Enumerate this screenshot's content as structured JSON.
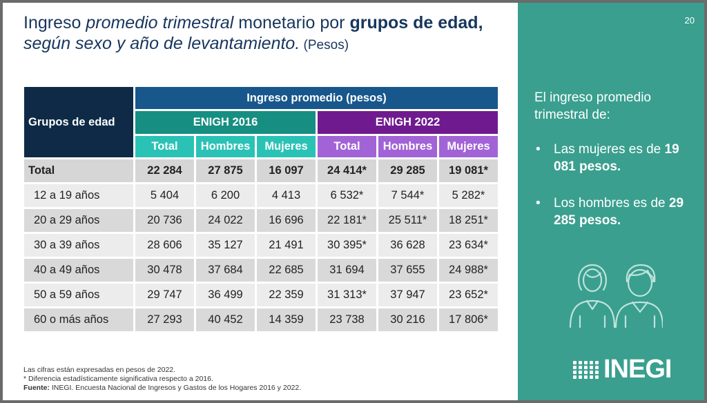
{
  "title": {
    "part1": "Ingreso ",
    "part2": "promedio trimestral",
    "part3": " monetario por ",
    "part4": "grupos de edad,",
    "part5": "según sexo y año de levantamiento.",
    "part6": " (Pesos)"
  },
  "page_number": "20",
  "table": {
    "group_header": "Grupos de edad",
    "top_header": "Ingreso promedio (pesos)",
    "survey_2016": "ENIGH 2016",
    "survey_2022": "ENIGH 2022",
    "sub_headers": [
      "Total",
      "Hombres",
      "Mujeres",
      "Total",
      "Hombres",
      "Mujeres"
    ],
    "rows": [
      {
        "label": "Total",
        "values": [
          "22 284",
          "27 875",
          "16 097",
          "24 414*",
          "29 285",
          "19 081*"
        ]
      },
      {
        "label": "12 a 19 años",
        "values": [
          "5 404",
          "6 200",
          "4 413",
          "6 532*",
          "7 544*",
          "5 282*"
        ]
      },
      {
        "label": "20 a 29 años",
        "values": [
          "20 736",
          "24 022",
          "16 696",
          "22 181*",
          "25 511*",
          "18 251*"
        ]
      },
      {
        "label": "30 a 39 años",
        "values": [
          "28 606",
          "35 127",
          "21 491",
          "30 395*",
          "36 628",
          "23 634*"
        ]
      },
      {
        "label": "40 a 49 años",
        "values": [
          "30 478",
          "37 684",
          "22 685",
          "31 694",
          "37 655",
          "24 988*"
        ]
      },
      {
        "label": "50 a 59 años",
        "values": [
          "29 747",
          "36 499",
          "22 359",
          "31 313*",
          "37 947",
          "23 652*"
        ]
      },
      {
        "label": "60 o más años",
        "values": [
          "27 293",
          "40 452",
          "14 359",
          "23 738",
          "30 216",
          "17 806*"
        ]
      }
    ]
  },
  "side": {
    "intro": "El ingreso promedio trimestral de:",
    "bullet1_text": "Las mujeres es de ",
    "bullet1_value": "19 081 pesos.",
    "bullet2_text": "Los hombres es de ",
    "bullet2_value": "29 285 pesos.",
    "bullet_symbol": "•",
    "icon": "people-icon"
  },
  "logo": {
    "text": "INEGI"
  },
  "notes": {
    "line1": "Las cifras están expresadas en pesos de 2022.",
    "line2": "* Diferencia estadísticamente significativa respecto a 2016.",
    "source_label": "Fuente:",
    "source_text": " INEGI. Encuesta Nacional de Ingresos y Gastos de los Hogares 2016 y 2022."
  },
  "colors": {
    "title": "#17365d",
    "side_bg": "#3a9f8f",
    "header_dark": "#0e2a47",
    "header_blue": "#17578c",
    "enigh2016": "#168f82",
    "enigh2022": "#6f1b8f",
    "sub2016": "#2bc2b6",
    "sub2022": "#a263d6"
  }
}
